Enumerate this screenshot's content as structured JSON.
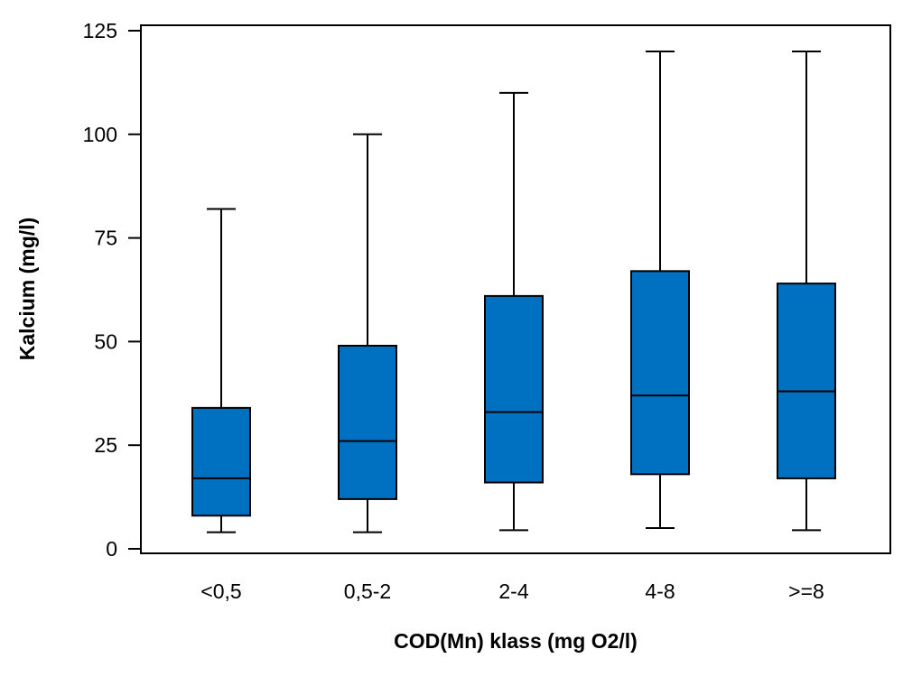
{
  "chart_data": {
    "type": "boxplot",
    "title": "",
    "xlabel": "COD(Mn) klass (mg O2/l)",
    "ylabel": "Kalcium (mg/l)",
    "ylim": [
      0,
      125
    ],
    "yticks": [
      0,
      25,
      50,
      75,
      100,
      125
    ],
    "categories": [
      "<0,5",
      "0,5-2",
      "2-4",
      "4-8",
      ">=8"
    ],
    "boxes": [
      {
        "min": 4,
        "q1": 8,
        "median": 17,
        "q3": 34,
        "max": 82
      },
      {
        "min": 4,
        "q1": 12,
        "median": 26,
        "q3": 49,
        "max": 100
      },
      {
        "min": 4.5,
        "q1": 16,
        "median": 33,
        "q3": 61,
        "max": 110
      },
      {
        "min": 5,
        "q1": 18,
        "median": 37,
        "q3": 67,
        "max": 120
      },
      {
        "min": 4.5,
        "q1": 17,
        "median": 38,
        "q3": 64,
        "max": 120
      }
    ],
    "box_color": "#0070c0",
    "grid": false,
    "legend": "none"
  }
}
